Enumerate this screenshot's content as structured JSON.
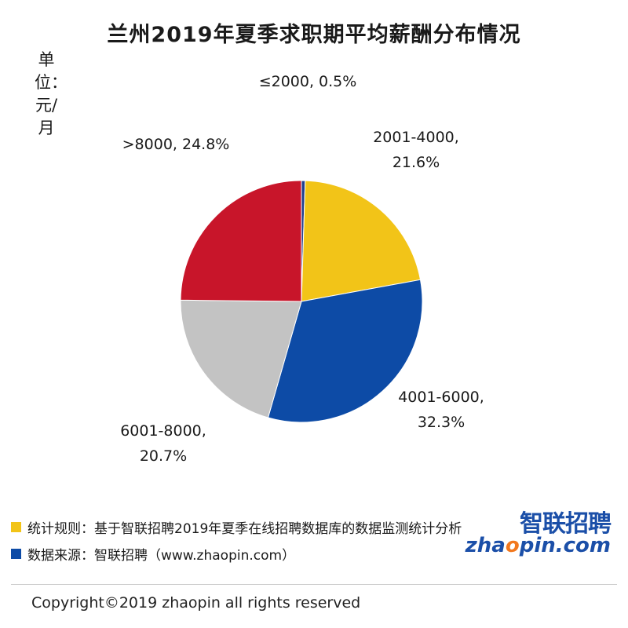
{
  "chart_data": {
    "type": "pie",
    "title": "兰州2019年夏季求职期平均薪酬分布情况",
    "unit_label": "单位：元/月",
    "slices": [
      {
        "category": "≤2000",
        "value": 0.5,
        "label": "≤2000, 0.5%",
        "color": "#1f3f8f"
      },
      {
        "category": "2001-4000",
        "value": 21.6,
        "label_line1": "2001-4000,",
        "label_line2": "21.6%",
        "color": "#f2c418"
      },
      {
        "category": "4001-6000",
        "value": 32.3,
        "label_line1": "4001-6000,",
        "label_line2": "32.3%",
        "color": "#0d4ba6"
      },
      {
        "category": "6001-8000",
        "value": 20.7,
        "label_line1": "6001-8000,",
        "label_line2": "20.7%",
        "color": "#c3c3c3"
      },
      {
        "category": ">8000",
        "value": 24.8,
        "label": ">8000, 24.8%",
        "color": "#c8152a"
      }
    ],
    "start_angle_deg": 0,
    "direction": "clockwise"
  },
  "legend": {
    "rule": {
      "text": "统计规则：基于智联招聘2019年夏季在线招聘数据库的数据监测统计分析",
      "color": "#f2c418"
    },
    "source": {
      "text": "数据来源：智联招聘（www.zhaopin.com）",
      "color": "#0d4ba6"
    }
  },
  "logo": {
    "cn": "智联招聘",
    "en_prefix": "zha",
    "en_dot": "o",
    "en_suffix": "pin.com"
  },
  "copyright": "Copyright©2019 zhaopin all rights reserved"
}
